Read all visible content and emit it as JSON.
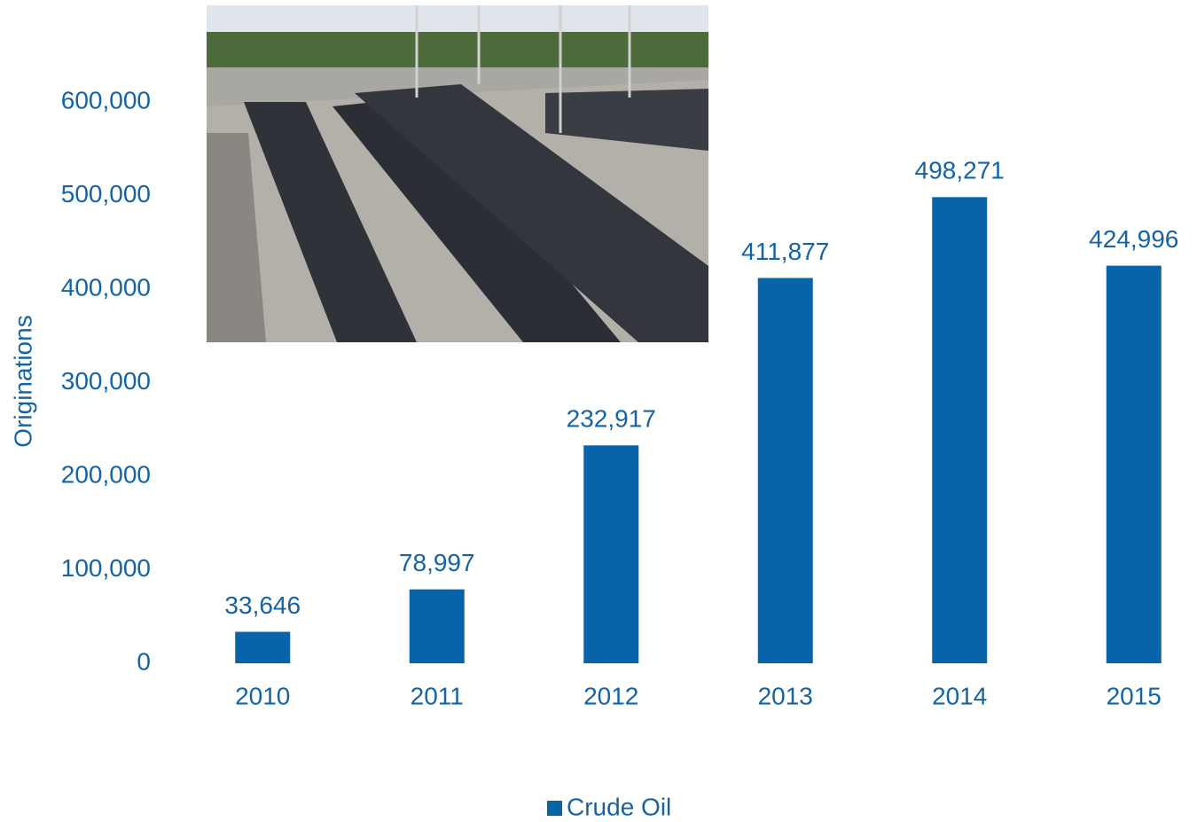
{
  "chart_data": {
    "type": "bar",
    "y_label": "Originations",
    "categories": [
      "2010",
      "2011",
      "2012",
      "2013",
      "2014",
      "2015"
    ],
    "series": [
      {
        "name": "Crude Oil",
        "color": "#0863a8",
        "values": [
          33646,
          78997,
          232917,
          411877,
          498271,
          424996
        ],
        "value_labels": [
          "33,646",
          "78,997",
          "232,917",
          "411,877",
          "498,271",
          "424,996"
        ]
      }
    ],
    "ylim": [
      0,
      700000
    ],
    "yticks": [
      0,
      {
        "value": 100000,
        "label": "100,000"
      },
      {
        "value": 200000,
        "label": "200,000"
      },
      {
        "value": 300000,
        "label": "300,000"
      },
      {
        "value": 400000,
        "label": "400,000"
      },
      {
        "value": 500000,
        "label": "500,000"
      },
      {
        "value": 600000,
        "label": "600,000"
      }
    ],
    "grid": false,
    "legend": "bottom"
  }
}
